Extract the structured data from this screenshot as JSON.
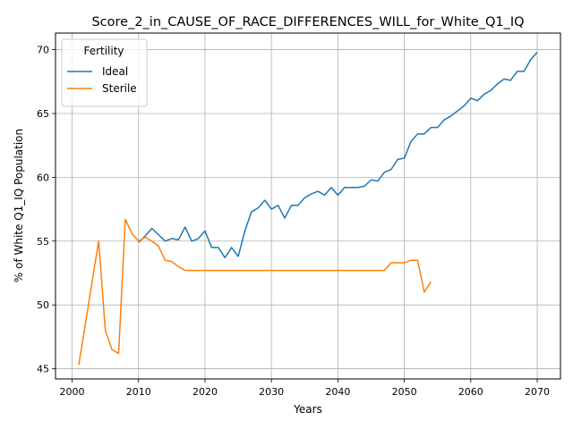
{
  "chart_data": {
    "type": "line",
    "title": "Score_2_in_CAUSE_OF_RACE_DIFFERENCES_WILL_for_White_Q1_IQ",
    "xlabel": "Years",
    "ylabel": "% of White Q1_IQ Population",
    "xlim": [
      1997.5,
      2073.5
    ],
    "ylim": [
      44.2,
      71.3
    ],
    "xticks": [
      2000,
      2010,
      2020,
      2030,
      2040,
      2050,
      2060,
      2070
    ],
    "yticks": [
      45,
      50,
      55,
      60,
      65,
      70
    ],
    "grid": true,
    "legend": {
      "title": "Fertility",
      "placement": "upper-left"
    },
    "series": [
      {
        "name": "Ideal",
        "color": "#1f77b4",
        "x": [
          2010,
          2011,
          2012,
          2013,
          2014,
          2015,
          2016,
          2017,
          2018,
          2019,
          2020,
          2021,
          2022,
          2023,
          2024,
          2025,
          2026,
          2027,
          2028,
          2029,
          2030,
          2031,
          2032,
          2033,
          2034,
          2035,
          2036,
          2037,
          2038,
          2039,
          2040,
          2041,
          2042,
          2043,
          2044,
          2045,
          2046,
          2047,
          2048,
          2049,
          2050,
          2051,
          2052,
          2053,
          2054,
          2055,
          2056,
          2057,
          2058,
          2059,
          2060,
          2061,
          2062,
          2063,
          2064,
          2065,
          2066,
          2067,
          2068,
          2069,
          2070
        ],
        "y": [
          54.9,
          55.4,
          56.0,
          55.5,
          55.0,
          55.2,
          55.1,
          56.1,
          55.0,
          55.2,
          55.8,
          54.5,
          54.5,
          53.7,
          54.5,
          53.8,
          55.8,
          57.3,
          57.6,
          58.2,
          57.5,
          57.8,
          56.8,
          57.8,
          57.8,
          58.4,
          58.7,
          58.9,
          58.6,
          59.2,
          58.6,
          59.2,
          59.2,
          59.2,
          59.3,
          59.8,
          59.7,
          60.4,
          60.6,
          61.4,
          61.5,
          62.8,
          63.4,
          63.4,
          63.9,
          63.9,
          64.5,
          64.8,
          65.2,
          65.6,
          66.2,
          66.0,
          66.5,
          66.8,
          67.3,
          67.7,
          67.6,
          68.3,
          68.3,
          69.2,
          69.8
        ]
      },
      {
        "name": "Sterile",
        "color": "#ff7f0e",
        "x": [
          2001,
          2002,
          2003,
          2004,
          2005,
          2006,
          2007,
          2008,
          2009,
          2010,
          2011,
          2012,
          2013,
          2014,
          2015,
          2016,
          2017,
          2018,
          2019,
          2020,
          2021,
          2022,
          2023,
          2024,
          2025,
          2026,
          2027,
          2028,
          2029,
          2030,
          2031,
          2032,
          2033,
          2034,
          2035,
          2036,
          2037,
          2038,
          2039,
          2040,
          2041,
          2042,
          2043,
          2044,
          2045,
          2046,
          2047,
          2048,
          2049,
          2050,
          2051,
          2052,
          2053,
          2054
        ],
        "y": [
          45.3,
          48.5,
          51.8,
          55.0,
          48.0,
          46.5,
          46.2,
          56.7,
          55.6,
          55.0,
          55.3,
          55.0,
          54.6,
          53.5,
          53.4,
          53.0,
          52.7,
          52.7,
          52.7,
          52.7,
          52.7,
          52.7,
          52.7,
          52.7,
          52.7,
          52.7,
          52.7,
          52.7,
          52.7,
          52.7,
          52.7,
          52.7,
          52.7,
          52.7,
          52.7,
          52.7,
          52.7,
          52.7,
          52.7,
          52.7,
          52.7,
          52.7,
          52.7,
          52.7,
          52.7,
          52.7,
          52.7,
          53.3,
          53.3,
          53.3,
          53.5,
          53.5,
          51.0,
          51.8
        ]
      }
    ]
  }
}
